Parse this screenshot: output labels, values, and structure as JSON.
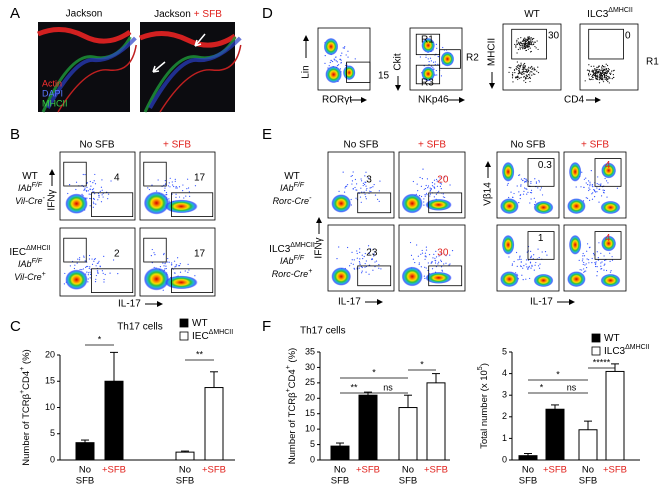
{
  "panel_a": {
    "label": "A",
    "left_title": "Jackson",
    "right_title": "Jackson",
    "right_title_extra": "+ SFB",
    "stains": [
      "Actin",
      "DAPI",
      "MHCII"
    ]
  },
  "panel_d": {
    "label": "D",
    "plot1": {
      "y_axis": "Lin",
      "x_axis": "RORγt",
      "gate": "15"
    },
    "plot2": {
      "y_axis": "Ckit",
      "x_axis": "NKp46",
      "gates": [
        "R1",
        "R2",
        "R3"
      ]
    },
    "plot3": {
      "header": [
        {
          "t": "WT"
        }
      ],
      "y_axis": "MHCII",
      "x_axis": "CD4",
      "gate": "30"
    },
    "plot4": {
      "header": [
        {
          "t": "ILC3"
        },
        {
          "t": "ΔMHCII",
          "sup": true
        }
      ],
      "gate": "0"
    },
    "side_label": "R1"
  },
  "panel_b": {
    "label": "B",
    "columns": [
      "No SFB",
      "+ SFB"
    ],
    "rows": [
      {
        "lines": [
          [
            {
              "t": "WT"
            }
          ],
          [
            {
              "t": "IAb"
            },
            {
              "t": "F/F",
              "sup": true
            }
          ],
          [
            {
              "t": "Vil-Cre"
            },
            {
              "t": "-",
              "sup": true
            }
          ]
        ],
        "gates": [
          "4",
          "17"
        ]
      },
      {
        "lines": [
          [
            {
              "t": "IEC"
            },
            {
              "t": "ΔMHCII",
              "sup": true
            }
          ],
          [
            {
              "t": "IAb"
            },
            {
              "t": "F/F",
              "sup": true
            }
          ],
          [
            {
              "t": "Vil-Cre"
            },
            {
              "t": "+",
              "sup": true
            }
          ]
        ],
        "gates": [
          "2",
          "17"
        ]
      }
    ],
    "y_axis": "IFNγ",
    "x_axis": "IL-17"
  },
  "panel_e": {
    "label": "E",
    "columns": [
      "No SFB",
      "+ SFB",
      "No SFB",
      "+ SFB"
    ],
    "rows": [
      {
        "lines": [
          [
            {
              "t": "WT"
            }
          ],
          [
            {
              "t": "IAb"
            },
            {
              "t": "F/F",
              "sup": true
            }
          ],
          [
            {
              "t": "Rorc-Cre"
            },
            {
              "t": "-",
              "sup": true
            }
          ]
        ],
        "gates": [
          "3",
          "20",
          "0.3",
          "4"
        ]
      },
      {
        "lines": [
          [
            {
              "t": "ILC3"
            },
            {
              "t": "ΔMHCII",
              "sup": true
            }
          ],
          [
            {
              "t": "IAb"
            },
            {
              "t": "F/F",
              "sup": true
            }
          ],
          [
            {
              "t": "Rorc-Cre"
            },
            {
              "t": "+",
              "sup": true
            }
          ]
        ],
        "gates": [
          "23",
          "30",
          "1",
          "4"
        ]
      }
    ],
    "y_axis_left": "IFNγ",
    "y_axis_right": "Vβ14",
    "x_axis_left": "IL-17",
    "x_axis_right": "IL-17"
  },
  "panel_c": {
    "label": "C",
    "title": "Th17 cells",
    "y_label": [
      {
        "t": "Number of TCRβ"
      },
      {
        "t": "+",
        "sup": true
      },
      {
        "t": "CD4"
      },
      {
        "t": "+",
        "sup": true
      },
      {
        "t": " (%)"
      }
    ],
    "categories": [
      [
        "No",
        "SFB"
      ],
      [
        "+SFB"
      ]
    ],
    "series": [
      {
        "name": [
          {
            "t": "WT"
          }
        ],
        "fill": "#000000",
        "values": [
          3.3,
          15
        ],
        "errors": [
          0.5,
          5.5
        ]
      },
      {
        "name": [
          {
            "t": "IEC"
          },
          {
            "t": "ΔMHCII",
            "sup": true
          }
        ],
        "fill": "#ffffff",
        "values": [
          1.5,
          13.8
        ],
        "errors": [
          0.2,
          3
        ]
      }
    ],
    "ylim": [
      0,
      20
    ],
    "yticks": [
      0,
      5,
      10,
      15,
      20
    ],
    "significance": [
      "*",
      "**"
    ]
  },
  "panel_f": {
    "label": "F",
    "title": "Th17 cells",
    "left": {
      "y_label": [
        {
          "t": "Number of TCRβ"
        },
        {
          "t": "+",
          "sup": true
        },
        {
          "t": "CD4"
        },
        {
          "t": "+",
          "sup": true
        },
        {
          "t": " (%)"
        }
      ],
      "categories": [
        [
          "No",
          "SFB"
        ],
        [
          "+SFB"
        ]
      ],
      "series": [
        {
          "fill": "#000000",
          "values": [
            4.5,
            21
          ],
          "errors": [
            1,
            1
          ]
        },
        {
          "fill": "#ffffff",
          "values": [
            17,
            25
          ],
          "errors": [
            4,
            3
          ]
        }
      ],
      "ylim": [
        0,
        35
      ],
      "yticks": [
        0,
        5,
        10,
        15,
        20,
        25,
        30,
        35
      ],
      "significance": [
        "*",
        "**",
        "ns",
        "*"
      ]
    },
    "right": {
      "y_label": [
        {
          "t": "Total number (x 10"
        },
        {
          "t": "5",
          "sup": true
        },
        {
          "t": ")"
        }
      ],
      "categories": [
        [
          "No",
          "SFB"
        ],
        [
          "+SFB"
        ]
      ],
      "series": [
        {
          "name": [
            {
              "t": "WT"
            }
          ],
          "fill": "#000000",
          "values": [
            0.2,
            2.35
          ],
          "errors": [
            0.1,
            0.2
          ]
        },
        {
          "name": [
            {
              "t": "ILC3"
            },
            {
              "t": "ΔMHCII",
              "sup": true
            }
          ],
          "fill": "#ffffff",
          "values": [
            1.4,
            4.1
          ],
          "errors": [
            0.4,
            0.35
          ]
        }
      ],
      "ylim": [
        0,
        5
      ],
      "yticks": [
        0,
        1,
        2,
        3,
        4,
        5
      ],
      "significance": [
        "*",
        "*",
        "ns",
        "*****"
      ]
    }
  }
}
